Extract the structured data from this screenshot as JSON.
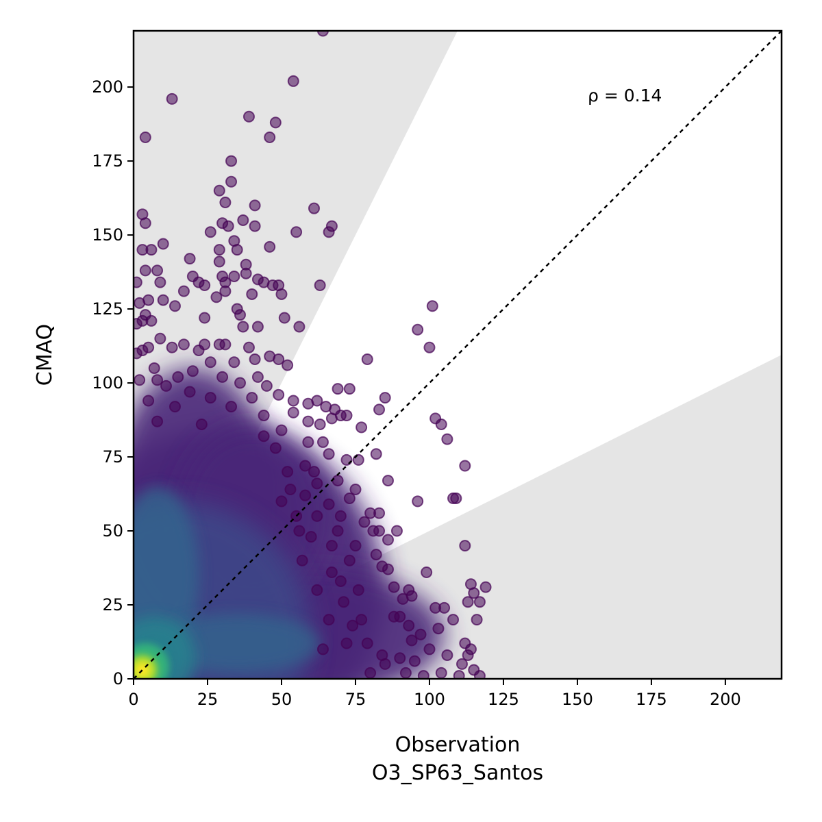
{
  "chart_data": {
    "type": "scatter",
    "title": "",
    "xlabel": "Observation",
    "xlabel_sub": "O3_SP63_Santos",
    "ylabel": "CMAQ",
    "xlim": [
      0,
      219
    ],
    "ylim": [
      0,
      219
    ],
    "xticks": [
      0,
      25,
      50,
      75,
      100,
      125,
      150,
      175,
      200
    ],
    "yticks": [
      0,
      25,
      50,
      75,
      100,
      125,
      150,
      175,
      200
    ],
    "annotation": "ρ = 0.14",
    "grid": false,
    "one_to_one_line": true,
    "shaded_band_slopes": [
      0.5,
      2.0
    ],
    "colormap": "viridis",
    "density_colors": [
      "#440154",
      "#482878",
      "#3e4a89",
      "#31688e",
      "#26828e",
      "#1f9e89",
      "#35b779",
      "#6ece58",
      "#b5de2b",
      "#fde725"
    ],
    "band_color": "#e5e5e5",
    "point_color": "#440154",
    "series": [
      {
        "points": [
          [
            64,
            219
          ],
          [
            54,
            202
          ],
          [
            13,
            196
          ],
          [
            39,
            190
          ],
          [
            48,
            188
          ],
          [
            4,
            183
          ],
          [
            46,
            183
          ],
          [
            33,
            175
          ],
          [
            33,
            168
          ],
          [
            29,
            165
          ],
          [
            31,
            161
          ],
          [
            41,
            160
          ],
          [
            61,
            159
          ],
          [
            3,
            157
          ],
          [
            4,
            154
          ],
          [
            30,
            154
          ],
          [
            37,
            155
          ],
          [
            67,
            153
          ],
          [
            41,
            153
          ],
          [
            32,
            153
          ],
          [
            66,
            151
          ],
          [
            55,
            151
          ],
          [
            26,
            151
          ],
          [
            34,
            148
          ],
          [
            10,
            147
          ],
          [
            35,
            145
          ],
          [
            46,
            146
          ],
          [
            3,
            145
          ],
          [
            6,
            145
          ],
          [
            29,
            145
          ],
          [
            19,
            142
          ],
          [
            29,
            141
          ],
          [
            38,
            140
          ],
          [
            8,
            138
          ],
          [
            38,
            137
          ],
          [
            4,
            138
          ],
          [
            30,
            136
          ],
          [
            34,
            136
          ],
          [
            20,
            136
          ],
          [
            44,
            134
          ],
          [
            1,
            134
          ],
          [
            31,
            134
          ],
          [
            42,
            135
          ],
          [
            9,
            134
          ],
          [
            22,
            134
          ],
          [
            47,
            133
          ],
          [
            49,
            133
          ],
          [
            63,
            133
          ],
          [
            24,
            133
          ],
          [
            50,
            130
          ],
          [
            31,
            131
          ],
          [
            17,
            131
          ],
          [
            40,
            130
          ],
          [
            28,
            129
          ],
          [
            5,
            128
          ],
          [
            10,
            128
          ],
          [
            2,
            127
          ],
          [
            14,
            126
          ],
          [
            35,
            125
          ],
          [
            4,
            123
          ],
          [
            36,
            123
          ],
          [
            24,
            122
          ],
          [
            51,
            122
          ],
          [
            3,
            121
          ],
          [
            6,
            121
          ],
          [
            1,
            120
          ],
          [
            37,
            119
          ],
          [
            56,
            119
          ],
          [
            42,
            119
          ],
          [
            17,
            113
          ],
          [
            29,
            113
          ],
          [
            9,
            115
          ],
          [
            24,
            113
          ],
          [
            3,
            111
          ],
          [
            5,
            112
          ],
          [
            31,
            113
          ],
          [
            39,
            112
          ],
          [
            13,
            112
          ],
          [
            22,
            111
          ],
          [
            1,
            110
          ],
          [
            46,
            109
          ],
          [
            49,
            108
          ],
          [
            52,
            106
          ],
          [
            34,
            107
          ],
          [
            26,
            107
          ],
          [
            7,
            105
          ],
          [
            41,
            108
          ],
          [
            15,
            102
          ],
          [
            20,
            104
          ],
          [
            30,
            102
          ],
          [
            42,
            102
          ],
          [
            2,
            101
          ],
          [
            8,
            101
          ],
          [
            36,
            100
          ],
          [
            45,
            99
          ],
          [
            19,
            97
          ],
          [
            11,
            99
          ],
          [
            49,
            96
          ],
          [
            54,
            94
          ],
          [
            62,
            94
          ],
          [
            69,
            98
          ],
          [
            73,
            98
          ],
          [
            40,
            95
          ],
          [
            26,
            95
          ],
          [
            5,
            94
          ],
          [
            14,
            92
          ],
          [
            33,
            92
          ],
          [
            59,
            93
          ],
          [
            65,
            92
          ],
          [
            68,
            91
          ],
          [
            54,
            90
          ],
          [
            83,
            91
          ],
          [
            85,
            95
          ],
          [
            77,
            85
          ],
          [
            101,
            126
          ],
          [
            96,
            118
          ],
          [
            100,
            112
          ],
          [
            79,
            108
          ],
          [
            72,
            89
          ],
          [
            44,
            89
          ],
          [
            59,
            87
          ],
          [
            63,
            86
          ],
          [
            70,
            89
          ],
          [
            67,
            88
          ],
          [
            76,
            74
          ],
          [
            23,
            86
          ],
          [
            8,
            87
          ],
          [
            50,
            84
          ],
          [
            102,
            88
          ],
          [
            104,
            86
          ],
          [
            106,
            81
          ],
          [
            112,
            72
          ],
          [
            108,
            61
          ],
          [
            109,
            61
          ],
          [
            96,
            60
          ],
          [
            82,
            76
          ],
          [
            86,
            67
          ],
          [
            59,
            80
          ],
          [
            64,
            80
          ],
          [
            66,
            76
          ],
          [
            72,
            74
          ],
          [
            58,
            72
          ],
          [
            61,
            70
          ],
          [
            69,
            67
          ],
          [
            75,
            64
          ],
          [
            62,
            66
          ],
          [
            73,
            61
          ],
          [
            66,
            59
          ],
          [
            80,
            56
          ],
          [
            83,
            56
          ],
          [
            70,
            55
          ],
          [
            81,
            50
          ],
          [
            83,
            50
          ],
          [
            86,
            47
          ],
          [
            89,
            50
          ],
          [
            78,
            53
          ],
          [
            75,
            45
          ],
          [
            82,
            42
          ],
          [
            84,
            38
          ],
          [
            86,
            37
          ],
          [
            112,
            45
          ],
          [
            99,
            36
          ],
          [
            114,
            32
          ],
          [
            119,
            31
          ],
          [
            115,
            29
          ],
          [
            113,
            26
          ],
          [
            117,
            26
          ],
          [
            88,
            31
          ],
          [
            93,
            30
          ],
          [
            94,
            28
          ],
          [
            91,
            27
          ],
          [
            105,
            24
          ],
          [
            102,
            24
          ],
          [
            108,
            20
          ],
          [
            116,
            20
          ],
          [
            88,
            21
          ],
          [
            90,
            21
          ],
          [
            93,
            18
          ],
          [
            97,
            15
          ],
          [
            103,
            17
          ],
          [
            94,
            13
          ],
          [
            112,
            12
          ],
          [
            114,
            10
          ],
          [
            113,
            8
          ],
          [
            111,
            5
          ],
          [
            115,
            3
          ],
          [
            106,
            8
          ],
          [
            100,
            10
          ],
          [
            90,
            7
          ],
          [
            95,
            6
          ],
          [
            85,
            5
          ],
          [
            110,
            1
          ],
          [
            117,
            1
          ],
          [
            98,
            1
          ],
          [
            104,
            2
          ],
          [
            80,
            2
          ],
          [
            92,
            2
          ],
          [
            71,
            26
          ],
          [
            74,
            18
          ],
          [
            79,
            12
          ],
          [
            67,
            36
          ],
          [
            70,
            33
          ],
          [
            57,
            40
          ],
          [
            60,
            48
          ],
          [
            73,
            40
          ],
          [
            76,
            30
          ],
          [
            84,
            8
          ],
          [
            66,
            20
          ],
          [
            62,
            30
          ],
          [
            55,
            55
          ],
          [
            58,
            62
          ],
          [
            52,
            70
          ],
          [
            56,
            50
          ],
          [
            48,
            78
          ],
          [
            44,
            82
          ],
          [
            53,
            64
          ],
          [
            50,
            60
          ],
          [
            62,
            55
          ],
          [
            67,
            45
          ],
          [
            69,
            50
          ],
          [
            77,
            20
          ],
          [
            72,
            12
          ],
          [
            64,
            10
          ]
        ]
      }
    ]
  }
}
